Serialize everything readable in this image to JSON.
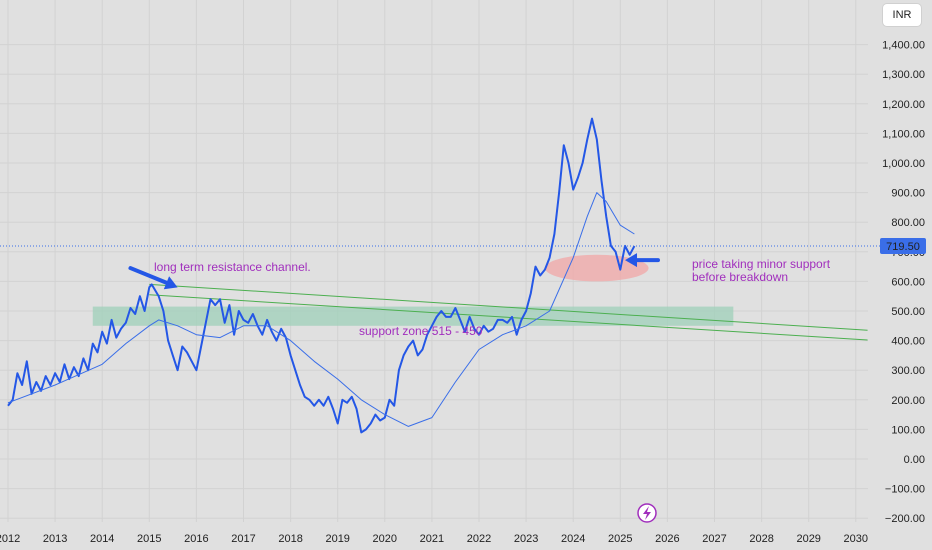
{
  "currency_label": "INR",
  "chart_data": {
    "type": "line",
    "title": "",
    "xlabel": "",
    "ylabel": "",
    "x_ticks": [
      "2012",
      "2013",
      "2014",
      "2015",
      "2016",
      "2017",
      "2018",
      "2019",
      "2020",
      "2021",
      "2022",
      "2023",
      "2024",
      "2025",
      "2026",
      "2027",
      "2028",
      "2029",
      "2030"
    ],
    "y_ticks": [
      "1,400.00",
      "1,300.00",
      "1,200.00",
      "1,100.00",
      "1,000.00",
      "900.00",
      "800.00",
      "700.00",
      "600.00",
      "500.00",
      "400.00",
      "300.00",
      "200.00",
      "100.00",
      "0.00",
      "−100.00",
      "−200.00"
    ],
    "xlim": [
      2012.0,
      2030.25
    ],
    "ylim": [
      -220,
      1510
    ],
    "grid": true,
    "last_price": "719.50",
    "last_price_value": 719.5,
    "series": [
      {
        "color": "#2457e6",
        "x": [
          2012.0,
          2012.1,
          2012.2,
          2012.3,
          2012.4,
          2012.5,
          2012.6,
          2012.7,
          2012.8,
          2012.9,
          2013.0,
          2013.1,
          2013.2,
          2013.3,
          2013.4,
          2013.5,
          2013.6,
          2013.7,
          2013.8,
          2013.9,
          2014.0,
          2014.1,
          2014.2,
          2014.3,
          2014.4,
          2014.5,
          2014.6,
          2014.7,
          2014.8,
          2014.9,
          2015.0,
          2015.05,
          2015.2,
          2015.3,
          2015.4,
          2015.5,
          2015.6,
          2015.7,
          2015.8,
          2015.9,
          2016.0,
          2016.1,
          2016.2,
          2016.3,
          2016.4,
          2016.5,
          2016.6,
          2016.7,
          2016.8,
          2016.9,
          2017.0,
          2017.1,
          2017.2,
          2017.3,
          2017.4,
          2017.5,
          2017.6,
          2017.7,
          2017.8,
          2017.9,
          2018.0,
          2018.1,
          2018.2,
          2018.3,
          2018.4,
          2018.5,
          2018.6,
          2018.7,
          2018.8,
          2018.9,
          2019.0,
          2019.1,
          2019.2,
          2019.3,
          2019.4,
          2019.5,
          2019.6,
          2019.7,
          2019.8,
          2019.9,
          2020.0,
          2020.1,
          2020.2,
          2020.3,
          2020.4,
          2020.5,
          2020.6,
          2020.7,
          2020.8,
          2020.9,
          2021.0,
          2021.1,
          2021.2,
          2021.3,
          2021.4,
          2021.5,
          2021.6,
          2021.7,
          2021.8,
          2021.9,
          2022.0,
          2022.1,
          2022.2,
          2022.3,
          2022.4,
          2022.5,
          2022.6,
          2022.7,
          2022.8,
          2022.9,
          2023.0,
          2023.1,
          2023.2,
          2023.3,
          2023.4,
          2023.5,
          2023.6,
          2023.7,
          2023.8,
          2023.9,
          2024.0,
          2024.1,
          2024.2,
          2024.3,
          2024.4,
          2024.5,
          2024.6,
          2024.7,
          2024.8,
          2024.9,
          2025.0,
          2025.1,
          2025.2,
          2025.3
        ],
        "values": [
          180,
          200,
          290,
          250,
          330,
          220,
          260,
          230,
          280,
          250,
          290,
          260,
          320,
          270,
          310,
          280,
          340,
          300,
          390,
          360,
          430,
          390,
          470,
          410,
          440,
          460,
          510,
          490,
          550,
          500,
          580,
          590,
          550,
          500,
          400,
          350,
          300,
          380,
          360,
          330,
          300,
          380,
          460,
          540,
          520,
          540,
          460,
          520,
          420,
          500,
          470,
          460,
          490,
          450,
          420,
          470,
          430,
          400,
          440,
          410,
          350,
          300,
          250,
          210,
          200,
          180,
          200,
          180,
          210,
          170,
          120,
          200,
          190,
          210,
          170,
          90,
          100,
          120,
          150,
          130,
          140,
          200,
          180,
          300,
          350,
          380,
          400,
          350,
          370,
          420,
          450,
          480,
          500,
          480,
          480,
          510,
          470,
          430,
          480,
          440,
          420,
          450,
          430,
          440,
          470,
          470,
          460,
          480,
          420,
          470,
          500,
          560,
          650,
          620,
          640,
          680,
          760,
          900,
          1060,
          1000,
          910,
          950,
          1000,
          1080,
          1150,
          1080,
          940,
          820,
          720,
          700,
          640,
          720,
          690,
          719.5
        ]
      },
      {
        "color": "#3a6ee8",
        "x": [
          2012.0,
          2013.0,
          2014.0,
          2014.5,
          2015.0,
          2015.2,
          2015.6,
          2016.0,
          2016.5,
          2017.0,
          2017.5,
          2018.0,
          2018.5,
          2019.0,
          2019.5,
          2020.0,
          2020.5,
          2021.0,
          2021.5,
          2022.0,
          2022.5,
          2023.0,
          2023.5,
          2024.0,
          2024.3,
          2024.5,
          2024.7,
          2025.0,
          2025.3
        ],
        "values": [
          190,
          250,
          320,
          390,
          450,
          470,
          450,
          420,
          410,
          450,
          450,
          400,
          330,
          270,
          200,
          150,
          110,
          140,
          260,
          370,
          420,
          450,
          500,
          680,
          820,
          900,
          870,
          790,
          760
        ]
      }
    ],
    "annotations": [
      {
        "text": "long term resistance channel.",
        "color": "#a12fbd"
      },
      {
        "text": "support zone 515 - 450",
        "color": "#a12fbd"
      },
      {
        "text": "price taking minor support",
        "color": "#a12fbd"
      },
      {
        "text": "before breakdown",
        "color": "#a12fbd"
      }
    ],
    "support_zone": {
      "from": 450,
      "to": 515,
      "x_start": 2013.8,
      "x_end": 2027.4,
      "color": "#9fd0b9"
    },
    "minor_support_zone": {
      "from": 600,
      "to": 690,
      "x_start": 2023.4,
      "x_end": 2025.6,
      "color": "#f2a7a7"
    },
    "channel_lines": [
      {
        "x": [
          2015.0,
          2030.25
        ],
        "y": [
          590,
          435
        ],
        "color": "#4caf50"
      },
      {
        "x": [
          2015.0,
          2030.25
        ],
        "y": [
          555,
          402
        ],
        "color": "#4caf50"
      }
    ],
    "arrows": [
      {
        "from": [
          2014.6,
          645
        ],
        "to": [
          2015.6,
          580
        ],
        "color": "#2457e6"
      },
      {
        "from": [
          2025.8,
          672
        ],
        "to": [
          2025.1,
          672
        ],
        "color": "#2457e6"
      }
    ]
  }
}
